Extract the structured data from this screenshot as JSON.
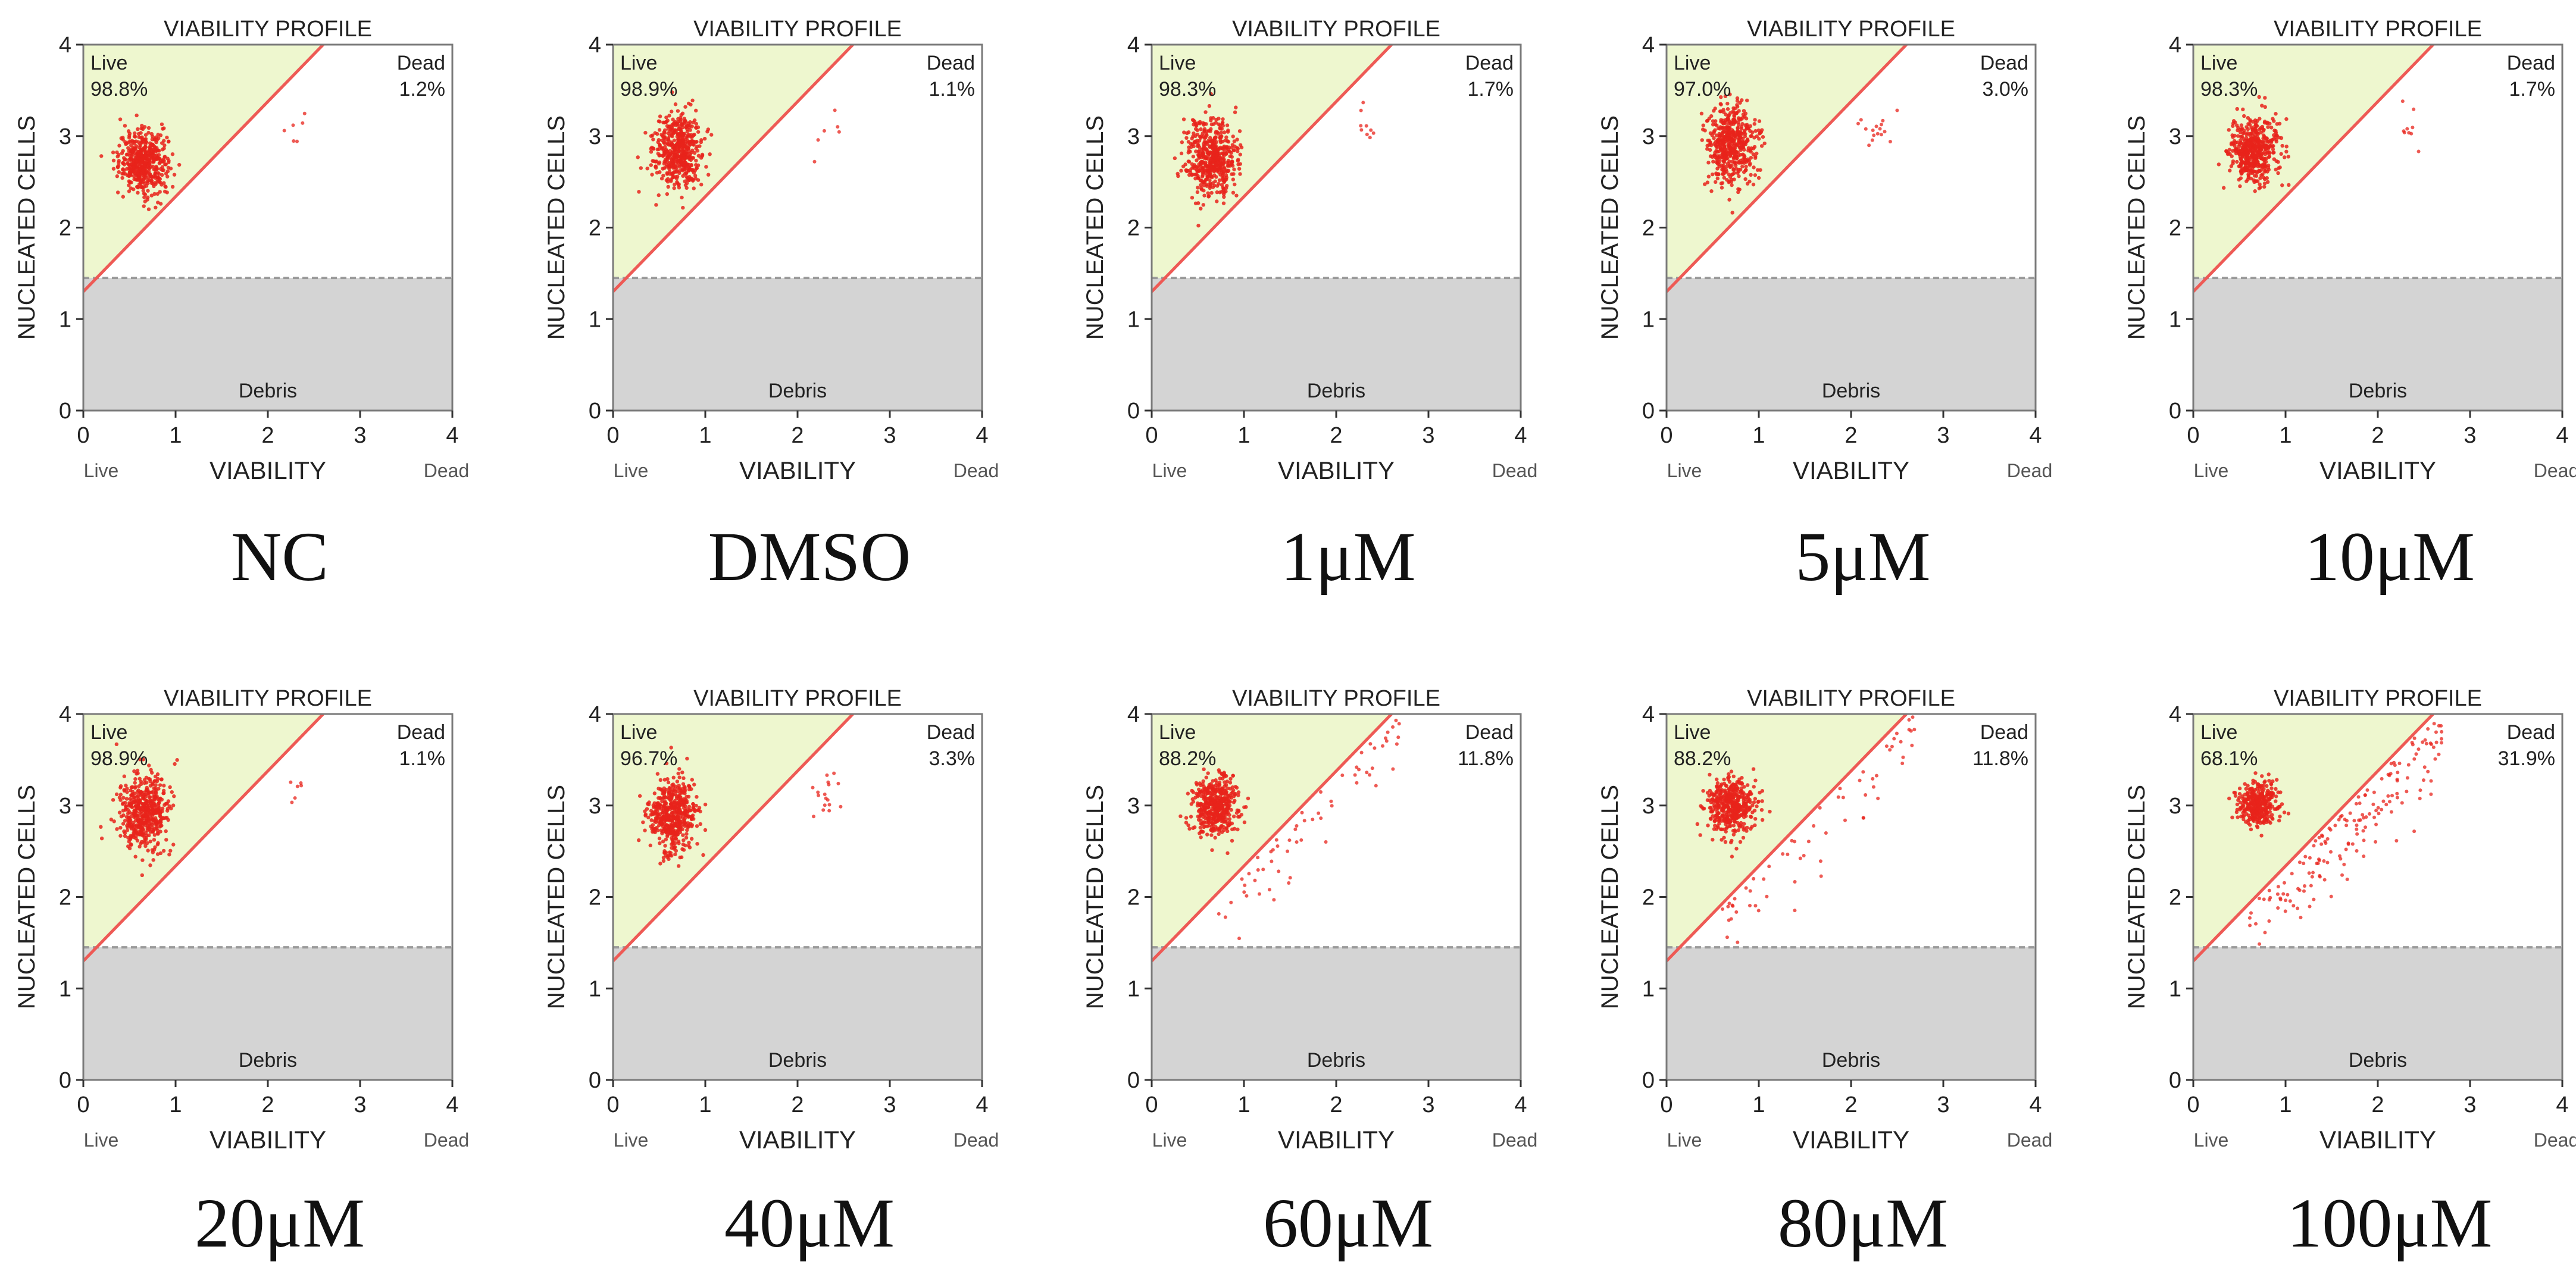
{
  "figure": {
    "colors": {
      "live_zone": "#eef7cf",
      "debris_zone": "#d4d4d4",
      "gate_line": "#ee5a55",
      "dots": "#e8231b",
      "frame": "#7a7a7a",
      "text": "#222222",
      "caption": "#111111"
    }
  },
  "chart_data": [
    {
      "type": "scatter",
      "title": "VIABILITY PROFILE",
      "xlabel": "VIABILITY",
      "ylabel": "NUCLEATED CELLS",
      "x_ticks": [
        "0",
        "1",
        "2",
        "3",
        "4"
      ],
      "y_ticks": [
        "0",
        "1",
        "2",
        "3",
        "4"
      ],
      "xlim": [
        0,
        4
      ],
      "ylim": [
        0,
        4
      ],
      "x_left_label": "Live",
      "x_right_label": "Dead",
      "live_label": "Live",
      "dead_label": "Dead",
      "live_pct": "98.8%",
      "dead_pct": "1.2%",
      "debris_label": "Debris",
      "debris_threshold": 1.45,
      "gate_line": {
        "x0": 0,
        "y0": 1.3,
        "x1": 2.6,
        "y1": 4.0
      },
      "caption": "NC",
      "cluster": {
        "cx": 0.65,
        "cy": 2.72,
        "sx": 0.13,
        "sy": 0.17
      }
    },
    {
      "type": "scatter",
      "title": "VIABILITY PROFILE",
      "xlabel": "VIABILITY",
      "ylabel": "NUCLEATED CELLS",
      "x_ticks": [
        "0",
        "1",
        "2",
        "3",
        "4"
      ],
      "y_ticks": [
        "0",
        "1",
        "2",
        "3",
        "4"
      ],
      "xlim": [
        0,
        4
      ],
      "ylim": [
        0,
        4
      ],
      "x_left_label": "Live",
      "x_right_label": "Dead",
      "live_label": "Live",
      "dead_label": "Dead",
      "live_pct": "98.9%",
      "dead_pct": "1.1%",
      "debris_label": "Debris",
      "debris_threshold": 1.45,
      "gate_line": {
        "x0": 0,
        "y0": 1.3,
        "x1": 2.6,
        "y1": 4.0
      },
      "caption": "DMSO",
      "cluster": {
        "cx": 0.7,
        "cy": 2.85,
        "sx": 0.13,
        "sy": 0.2
      }
    },
    {
      "type": "scatter",
      "title": "VIABILITY PROFILE",
      "xlabel": "VIABILITY",
      "ylabel": "NUCLEATED CELLS",
      "x_ticks": [
        "0",
        "1",
        "2",
        "3",
        "4"
      ],
      "y_ticks": [
        "0",
        "1",
        "2",
        "3",
        "4"
      ],
      "xlim": [
        0,
        4
      ],
      "ylim": [
        0,
        4
      ],
      "x_left_label": "Live",
      "x_right_label": "Dead",
      "live_label": "Live",
      "dead_label": "Dead",
      "live_pct": "98.3%",
      "dead_pct": "1.7%",
      "debris_label": "Debris",
      "debris_threshold": 1.45,
      "gate_line": {
        "x0": 0,
        "y0": 1.3,
        "x1": 2.6,
        "y1": 4.0
      },
      "caption": "1μM",
      "cluster": {
        "cx": 0.65,
        "cy": 2.75,
        "sx": 0.14,
        "sy": 0.22
      }
    },
    {
      "type": "scatter",
      "title": "VIABILITY PROFILE",
      "xlabel": "VIABILITY",
      "ylabel": "NUCLEATED CELLS",
      "x_ticks": [
        "0",
        "1",
        "2",
        "3",
        "4"
      ],
      "y_ticks": [
        "0",
        "1",
        "2",
        "3",
        "4"
      ],
      "xlim": [
        0,
        4
      ],
      "ylim": [
        0,
        4
      ],
      "x_left_label": "Live",
      "x_right_label": "Dead",
      "live_label": "Live",
      "dead_label": "Dead",
      "live_pct": "97.0%",
      "dead_pct": "3.0%",
      "debris_label": "Debris",
      "debris_threshold": 1.45,
      "gate_line": {
        "x0": 0,
        "y0": 1.3,
        "x1": 2.6,
        "y1": 4.0
      },
      "caption": "5μM",
      "cluster": {
        "cx": 0.7,
        "cy": 2.9,
        "sx": 0.13,
        "sy": 0.22
      }
    },
    {
      "type": "scatter",
      "title": "VIABILITY PROFILE",
      "xlabel": "VIABILITY",
      "ylabel": "NUCLEATED CELLS",
      "x_ticks": [
        "0",
        "1",
        "2",
        "3",
        "4"
      ],
      "y_ticks": [
        "0",
        "1",
        "2",
        "3",
        "4"
      ],
      "xlim": [
        0,
        4
      ],
      "ylim": [
        0,
        4
      ],
      "x_left_label": "Live",
      "x_right_label": "Dead",
      "live_label": "Live",
      "dead_label": "Dead",
      "live_pct": "98.3%",
      "dead_pct": "1.7%",
      "debris_label": "Debris",
      "debris_threshold": 1.45,
      "gate_line": {
        "x0": 0,
        "y0": 1.3,
        "x1": 2.6,
        "y1": 4.0
      },
      "caption": "10μM",
      "cluster": {
        "cx": 0.65,
        "cy": 2.85,
        "sx": 0.13,
        "sy": 0.18
      }
    },
    {
      "type": "scatter",
      "title": "VIABILITY PROFILE",
      "xlabel": "VIABILITY",
      "ylabel": "NUCLEATED CELLS",
      "x_ticks": [
        "0",
        "1",
        "2",
        "3",
        "4"
      ],
      "y_ticks": [
        "0",
        "1",
        "2",
        "3",
        "4"
      ],
      "xlim": [
        0,
        4
      ],
      "ylim": [
        0,
        4
      ],
      "x_left_label": "Live",
      "x_right_label": "Dead",
      "live_label": "Live",
      "dead_label": "Dead",
      "live_pct": "98.9%",
      "dead_pct": "1.1%",
      "debris_label": "Debris",
      "debris_threshold": 1.45,
      "gate_line": {
        "x0": 0,
        "y0": 1.3,
        "x1": 2.6,
        "y1": 4.0
      },
      "caption": "20μM",
      "cluster": {
        "cx": 0.65,
        "cy": 2.95,
        "sx": 0.13,
        "sy": 0.2
      }
    },
    {
      "type": "scatter",
      "title": "VIABILITY PROFILE",
      "xlabel": "VIABILITY",
      "ylabel": "NUCLEATED CELLS",
      "x_ticks": [
        "0",
        "1",
        "2",
        "3",
        "4"
      ],
      "y_ticks": [
        "0",
        "1",
        "2",
        "3",
        "4"
      ],
      "xlim": [
        0,
        4
      ],
      "ylim": [
        0,
        4
      ],
      "x_left_label": "Live",
      "x_right_label": "Dead",
      "live_label": "Live",
      "dead_label": "Dead",
      "live_pct": "96.7%",
      "dead_pct": "3.3%",
      "debris_label": "Debris",
      "debris_threshold": 1.45,
      "gate_line": {
        "x0": 0,
        "y0": 1.3,
        "x1": 2.6,
        "y1": 4.0
      },
      "caption": "40μM",
      "cluster": {
        "cx": 0.65,
        "cy": 2.9,
        "sx": 0.13,
        "sy": 0.2
      }
    },
    {
      "type": "scatter",
      "title": "VIABILITY PROFILE",
      "xlabel": "VIABILITY",
      "ylabel": "NUCLEATED CELLS",
      "x_ticks": [
        "0",
        "1",
        "2",
        "3",
        "4"
      ],
      "y_ticks": [
        "0",
        "1",
        "2",
        "3",
        "4"
      ],
      "xlim": [
        0,
        4
      ],
      "ylim": [
        0,
        4
      ],
      "x_left_label": "Live",
      "x_right_label": "Dead",
      "live_label": "Live",
      "dead_label": "Dead",
      "live_pct": "88.2%",
      "dead_pct": "11.8%",
      "debris_label": "Debris",
      "debris_threshold": 1.45,
      "gate_line": {
        "x0": 0,
        "y0": 1.3,
        "x1": 2.6,
        "y1": 4.0
      },
      "caption": "60μM",
      "cluster": {
        "cx": 0.7,
        "cy": 3.0,
        "sx": 0.12,
        "sy": 0.16
      }
    },
    {
      "type": "scatter",
      "title": "VIABILITY PROFILE",
      "xlabel": "VIABILITY",
      "ylabel": "NUCLEATED CELLS",
      "x_ticks": [
        "0",
        "1",
        "2",
        "3",
        "4"
      ],
      "y_ticks": [
        "0",
        "1",
        "2",
        "3",
        "4"
      ],
      "xlim": [
        0,
        4
      ],
      "ylim": [
        0,
        4
      ],
      "x_left_label": "Live",
      "x_right_label": "Dead",
      "live_label": "Live",
      "dead_label": "Dead",
      "live_pct": "88.2%",
      "dead_pct": "11.8%",
      "debris_label": "Debris",
      "debris_threshold": 1.45,
      "gate_line": {
        "x0": 0,
        "y0": 1.3,
        "x1": 2.6,
        "y1": 4.0
      },
      "caption": "80μM",
      "cluster": {
        "cx": 0.7,
        "cy": 3.0,
        "sx": 0.12,
        "sy": 0.16
      }
    },
    {
      "type": "scatter",
      "title": "VIABILITY PROFILE",
      "xlabel": "VIABILITY",
      "ylabel": "NUCLEATED CELLS",
      "x_ticks": [
        "0",
        "1",
        "2",
        "3",
        "4"
      ],
      "y_ticks": [
        "0",
        "1",
        "2",
        "3",
        "4"
      ],
      "xlim": [
        0,
        4
      ],
      "ylim": [
        0,
        4
      ],
      "x_left_label": "Live",
      "x_right_label": "Dead",
      "live_label": "Live",
      "dead_label": "Dead",
      "live_pct": "68.1%",
      "dead_pct": "31.9%",
      "debris_label": "Debris",
      "debris_threshold": 1.45,
      "gate_line": {
        "x0": 0,
        "y0": 1.3,
        "x1": 2.6,
        "y1": 4.0
      },
      "caption": "100μM",
      "cluster": {
        "cx": 0.7,
        "cy": 3.0,
        "sx": 0.1,
        "sy": 0.12
      }
    }
  ]
}
